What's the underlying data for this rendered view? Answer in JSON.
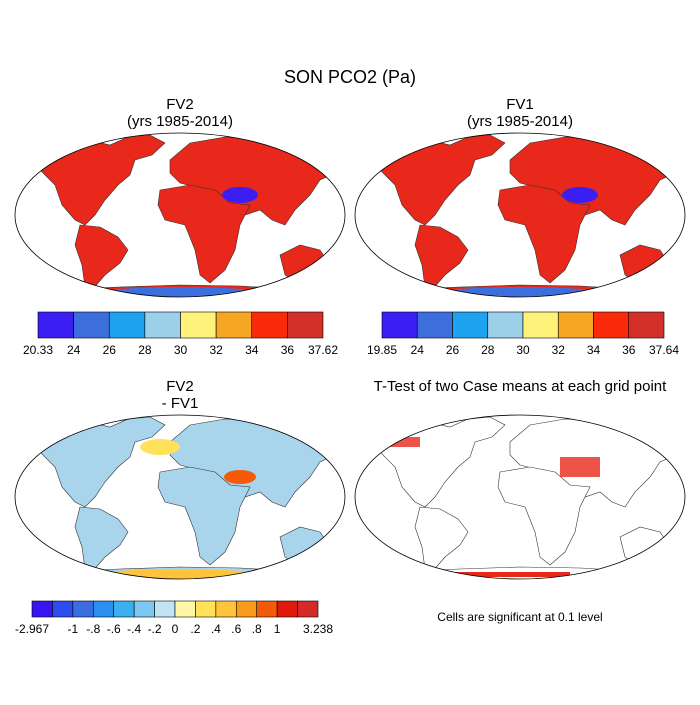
{
  "title": "SON PCO2 (Pa)",
  "panels": [
    {
      "title": [
        "FV2",
        "(yrs 1985-2014)"
      ],
      "colorbar": {
        "colors": [
          "#3b1ff2",
          "#3d6fdc",
          "#1ea3f0",
          "#9ccfe8",
          "#fff27a",
          "#f5a623",
          "#fa2a0a",
          "#d4302a"
        ],
        "labels": [
          "20.33",
          "24",
          "26",
          "28",
          "30",
          "32",
          "34",
          "36",
          "37.62"
        ]
      }
    },
    {
      "title": [
        "FV1",
        "(yrs 1985-2014)"
      ],
      "colorbar": {
        "colors": [
          "#3b1ff2",
          "#3d6fdc",
          "#1ea3f0",
          "#9ccfe8",
          "#fff27a",
          "#f5a623",
          "#fa2a0a",
          "#d4302a"
        ],
        "labels": [
          "19.85",
          "24",
          "26",
          "28",
          "30",
          "32",
          "34",
          "36",
          "37.64"
        ]
      }
    },
    {
      "title": [
        "FV2",
        "- FV1"
      ],
      "colorbar": {
        "colors": [
          "#3a14f0",
          "#2d4cf0",
          "#3a6ee0",
          "#2b8ff0",
          "#3ab0f0",
          "#7cc8f0",
          "#bfe4f5",
          "#fff6a8",
          "#ffe15a",
          "#ffc43a",
          "#fa9a1a",
          "#f55a0a",
          "#e01a0a",
          "#d42a2a"
        ],
        "labels": [
          "-2.967",
          "-1",
          "-.8",
          "-.6",
          "-.4",
          "-.2",
          "0",
          ".2",
          ".4",
          ".6",
          ".8",
          "1",
          "3.238"
        ]
      }
    },
    {
      "title": [
        "T-Test of two Case means at each grid point"
      ],
      "footnote": "Cells are significant at 0.1 level"
    }
  ]
}
